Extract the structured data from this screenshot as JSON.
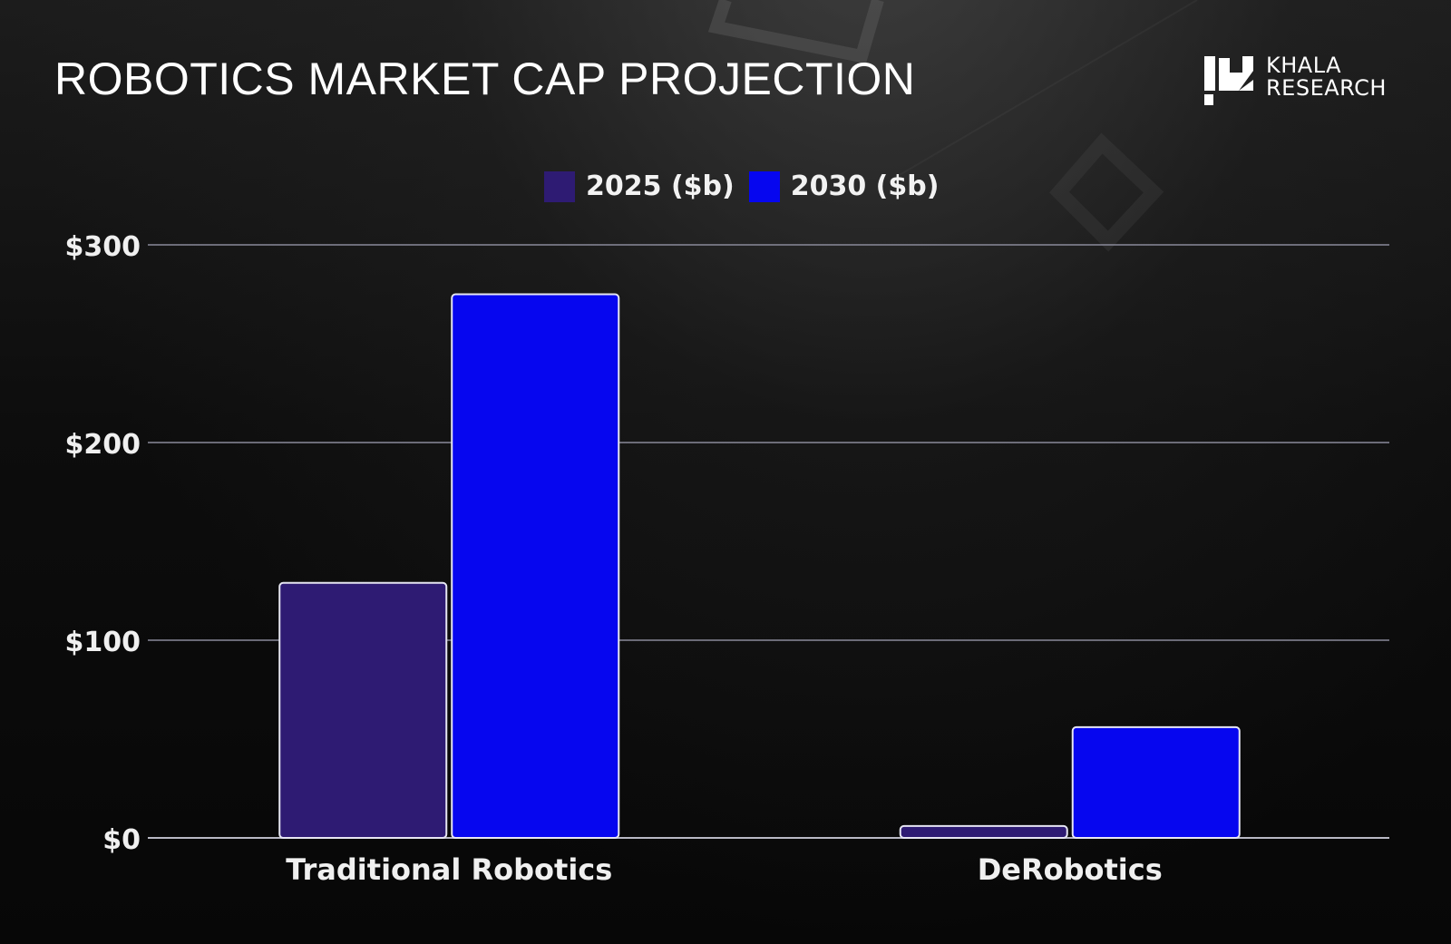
{
  "title": "ROBOTICS MARKET CAP PROJECTION",
  "logo": {
    "line1": "KHALA",
    "line2": "RESEARCH",
    "icon": "khala-logo-icon"
  },
  "colors": {
    "series_2025": "#2e1b73",
    "series_2030": "#0606ef",
    "bar_border": "#e6e6f2",
    "grid": "#8a8a9a"
  },
  "chart_data": {
    "type": "bar",
    "categories": [
      "Traditional Robotics",
      "DeRobotics"
    ],
    "series": [
      {
        "name": "2025 ($b)",
        "values": [
          129,
          6
        ]
      },
      {
        "name": "2030 ($b)",
        "values": [
          275,
          56
        ]
      }
    ],
    "yticks": [
      0,
      100,
      200,
      300
    ],
    "ytick_labels": [
      "$0",
      "$100",
      "$200",
      "$300"
    ],
    "ylim": [
      0,
      300
    ],
    "xlabel": "",
    "ylabel": "",
    "grid": true,
    "legend_position": "top-center"
  }
}
